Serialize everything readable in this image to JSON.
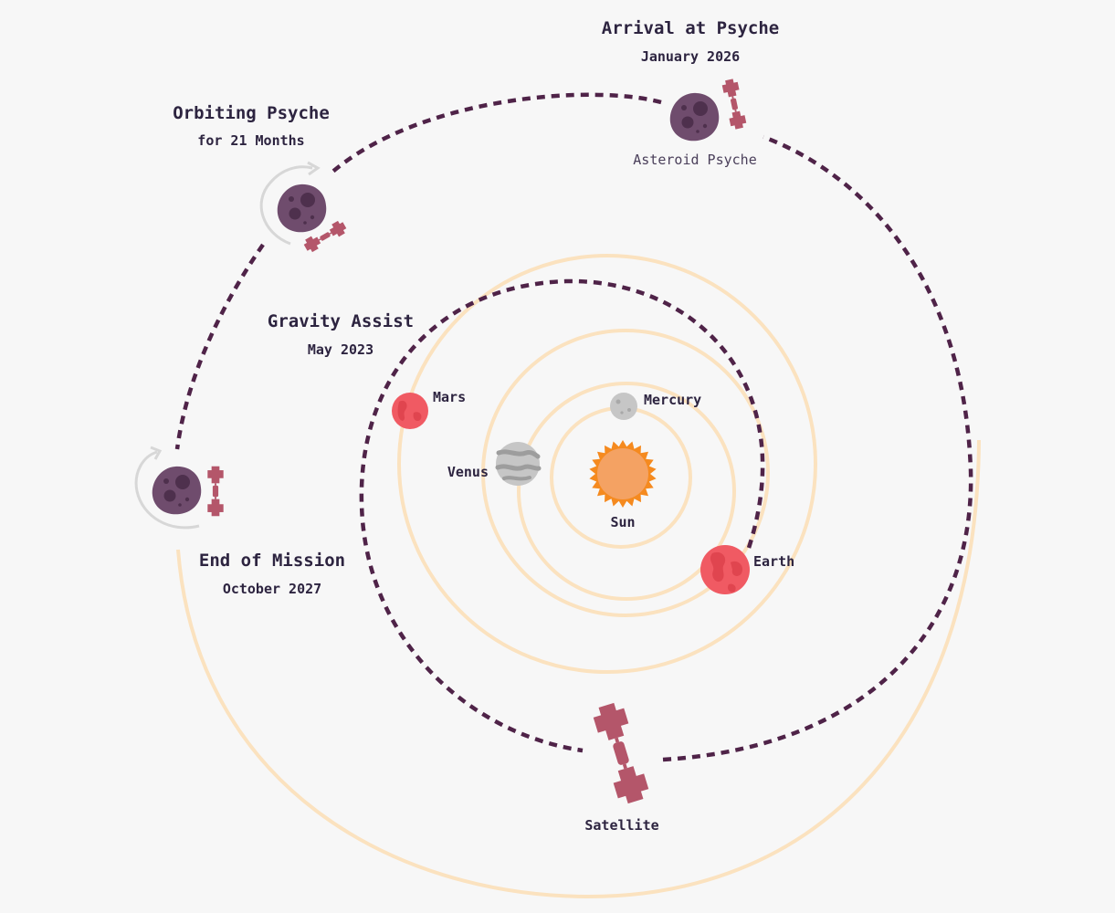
{
  "colors": {
    "background": "#f7f7f7",
    "orbit": "#fbe2bf",
    "trajectory": "#4f2348",
    "asteroid": "#6f4c6d",
    "asteroid_spots": "#4e304d",
    "satellite": "#b4566a",
    "sun": "#f4a263",
    "sun_rays": "#f58a1f",
    "planet_red": "#f05a63",
    "gray_planet": "#c6c6c6",
    "text": "#2d2440",
    "spin_arrow": "#d7d7d7"
  },
  "icons": {
    "asteroid": "asteroid-icon",
    "satellite": "satellite-icon",
    "sun": "sun-icon",
    "spin": "rotation-arrow-icon"
  },
  "labels": {
    "arrival_title": "Arrival at Psyche",
    "arrival_date": "January 2026",
    "asteroid_name": "Asteroid Psyche",
    "orbiting_title": "Orbiting Psyche",
    "orbiting_duration": "for 21 Months",
    "gravity_title": "Gravity Assist",
    "gravity_date": "May 2023",
    "end_title": "End of Mission",
    "end_date": "October 2027",
    "satellite": "Satellite"
  },
  "bodies": {
    "sun": "Sun",
    "mercury": "Mercury",
    "venus": "Venus",
    "earth": "Earth",
    "mars": "Mars"
  }
}
